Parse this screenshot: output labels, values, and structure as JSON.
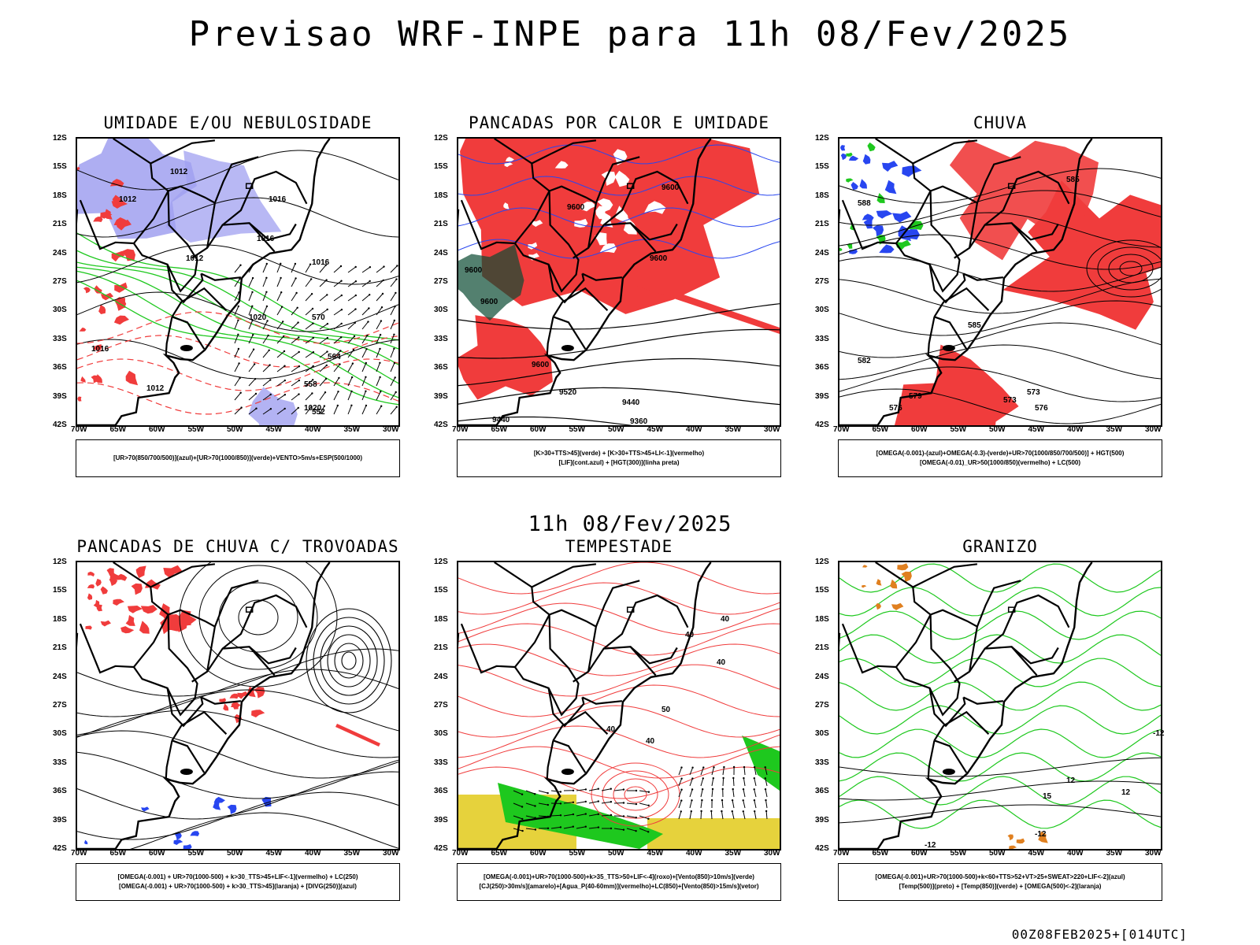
{
  "title": "Previsao WRF-INPE  para 11h 08/Fev/2025",
  "mid_title": "11h 08/Fev/2025",
  "footer": "00Z08FEB2025+[014UTC]",
  "lat_ticks": [
    "12S",
    "15S",
    "18S",
    "21S",
    "24S",
    "27S",
    "30S",
    "33S",
    "36S",
    "39S",
    "42S"
  ],
  "lon_ticks": [
    "70W",
    "65W",
    "60W",
    "55W",
    "50W",
    "45W",
    "40W",
    "35W",
    "30W"
  ],
  "colors": {
    "red": "#f03c3c",
    "green": "#1ec81e",
    "blue": "#2846f0",
    "lavender": "#a0a0f0",
    "yellow": "#e6d23c",
    "darkgreen": "#0a4a32",
    "orange": "#e08020"
  },
  "panels": [
    {
      "title": "UMIDADE E/OU NEBULOSIDADE",
      "legend": [
        "[UR>70(850/700/500)](azul)+[UR>70(1000/850)](verde)+VENTO>5m/s+ESP(500/1000)"
      ],
      "labels": [
        "1012",
        "1012",
        "1012",
        "1016",
        "1016",
        "1016",
        "1020",
        "1016",
        "1012",
        "564",
        "570",
        "558",
        "552",
        "1020"
      ]
    },
    {
      "title": "PANCADAS POR CALOR E UMIDADE",
      "legend": [
        "[K>30+TTS>45](verde)  +  [K>30+TTS>45+LI<-1](vermelho)",
        "[LIF](cont.azul)  +  [HGT(300)](linha preta)"
      ],
      "labels": [
        "9600",
        "9600",
        "9600",
        "9600",
        "9600",
        "9600",
        "9520",
        "9440",
        "9440",
        "9360"
      ]
    },
    {
      "title": "CHUVA",
      "legend": [
        "[OMEGA(-0.001)-(azul)+OMEGA(-0.3)-(verde)+UR>70(1000/850/700/500)]  +  HGT(500)",
        "[OMEGA(-0.01)_UR>50(1000/850)(vermelho)  +  LC(500)"
      ],
      "labels": [
        "585",
        "588",
        "585",
        "582",
        "579",
        "576",
        "573",
        "573",
        "576"
      ]
    },
    {
      "title": "PANCADAS DE CHUVA C/ TROVOADAS",
      "legend": [
        "[OMEGA(-0.001)  +  UR>70(1000-500)  +  k>30_TTS>45+LIF<-1](vermelho)  +  LC(250)",
        "[OMEGA(-0.001)  +  UR>70(1000-500)  +  k>30_TTS>45](laranja)  +  [DIVG(250)](azul)"
      ],
      "labels": []
    },
    {
      "title": "TEMPESTADE",
      "legend": [
        "[OMEGA(-0.001)+UR>70(1000-500)+k>35_TTS>50+LIF<-4](roxo)+[Vento(850)>10m/s](verde)",
        "[CJ(250)>30m/s](amarelo)+[Agua_P(40-60mm)](vermelho)+LC(850)+[Vento(850)>15m/s](vetor)"
      ],
      "labels": [
        "40",
        "40",
        "40",
        "50",
        "40",
        "40"
      ]
    },
    {
      "title": "GRANIZO",
      "legend": [
        "[OMEGA(-0.001)+UR>70(1000-500)+k<60+TTS>52+VT>25+SWEAT>220+LIF<-2](azul)",
        "[Temp(500)](preto)  +  [Temp(850)](verde)  +  [OMEGA(500)<-2](laranja)"
      ],
      "labels": [
        "-12",
        "-12",
        "12",
        "-12",
        "12",
        "15"
      ]
    }
  ]
}
